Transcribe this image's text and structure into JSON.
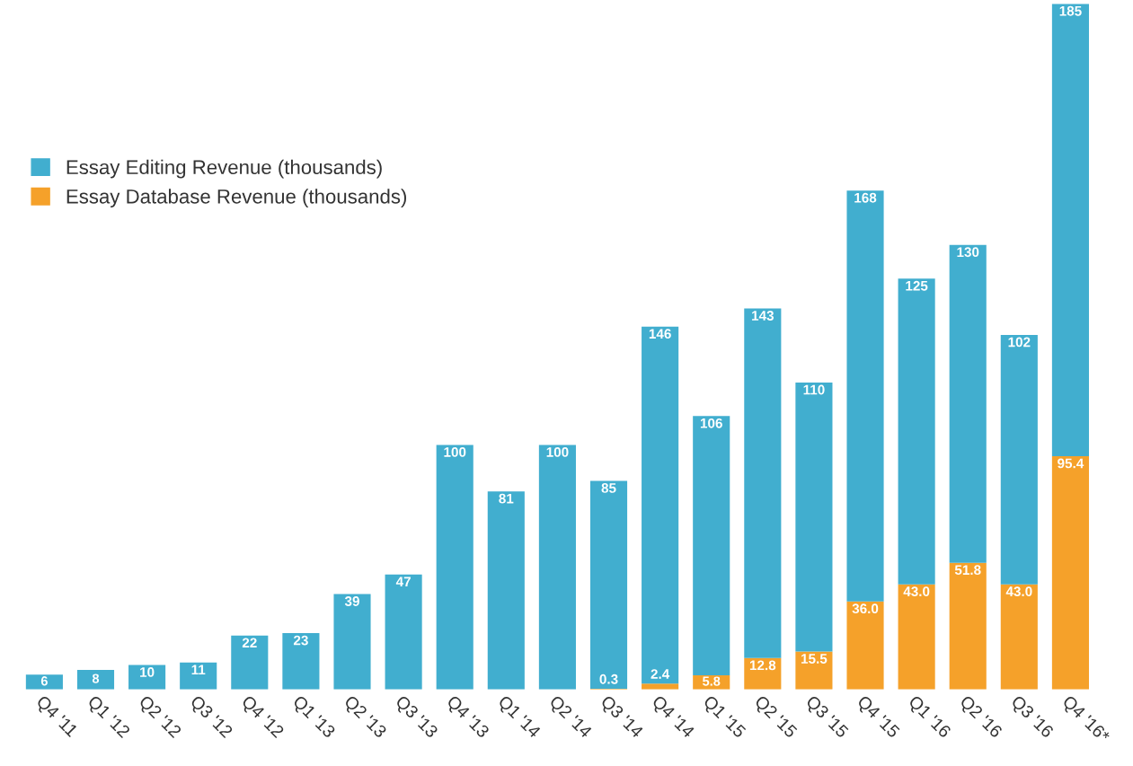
{
  "chart_data": {
    "type": "bar",
    "stacked": true,
    "legend": "top left",
    "grid": false,
    "tick_labels": "x",
    "categories": [
      "Q4 '11",
      "Q1 '12",
      "Q2 '12",
      "Q3 '12",
      "Q4 '12",
      "Q1 '13",
      "Q2 '13",
      "Q3 '13",
      "Q4 '13",
      "Q1 '14",
      "Q2 '14",
      "Q3 '14",
      "Q4 '14",
      "Q1 '15",
      "Q2 '15",
      "Q3 '15",
      "Q4 '15",
      "Q1 '16",
      "Q2 '16",
      "Q3 '16",
      "Q4 '16*"
    ],
    "series": [
      {
        "name": "Essay Database Revenue (thousands)",
        "color": "#f5a12a",
        "values": [
          null,
          null,
          null,
          null,
          null,
          null,
          null,
          null,
          null,
          null,
          null,
          0.3,
          2.4,
          5.8,
          12.8,
          15.5,
          36.0,
          43.0,
          51.8,
          43.0,
          95.4
        ],
        "value_labels": [
          null,
          null,
          null,
          null,
          null,
          null,
          null,
          null,
          null,
          null,
          null,
          "0.3",
          "2.4",
          "5.8",
          "12.8",
          "15.5",
          "36.0",
          "43.0",
          "51.8",
          "43.0",
          "95.4"
        ]
      },
      {
        "name": "Essay Editing Revenue (thousands)",
        "color": "#41aecf",
        "values": [
          6,
          8,
          10,
          11,
          22,
          23,
          39,
          47,
          100,
          81,
          100,
          85,
          146,
          106,
          143,
          110,
          168,
          125,
          130,
          102,
          185
        ],
        "value_labels": [
          "6",
          "8",
          "10",
          "11",
          "22",
          "23",
          "39",
          "47",
          "100",
          "81",
          "100",
          "85",
          "146",
          "106",
          "143",
          "110",
          "168",
          "125",
          "130",
          "102",
          "185"
        ]
      }
    ]
  }
}
